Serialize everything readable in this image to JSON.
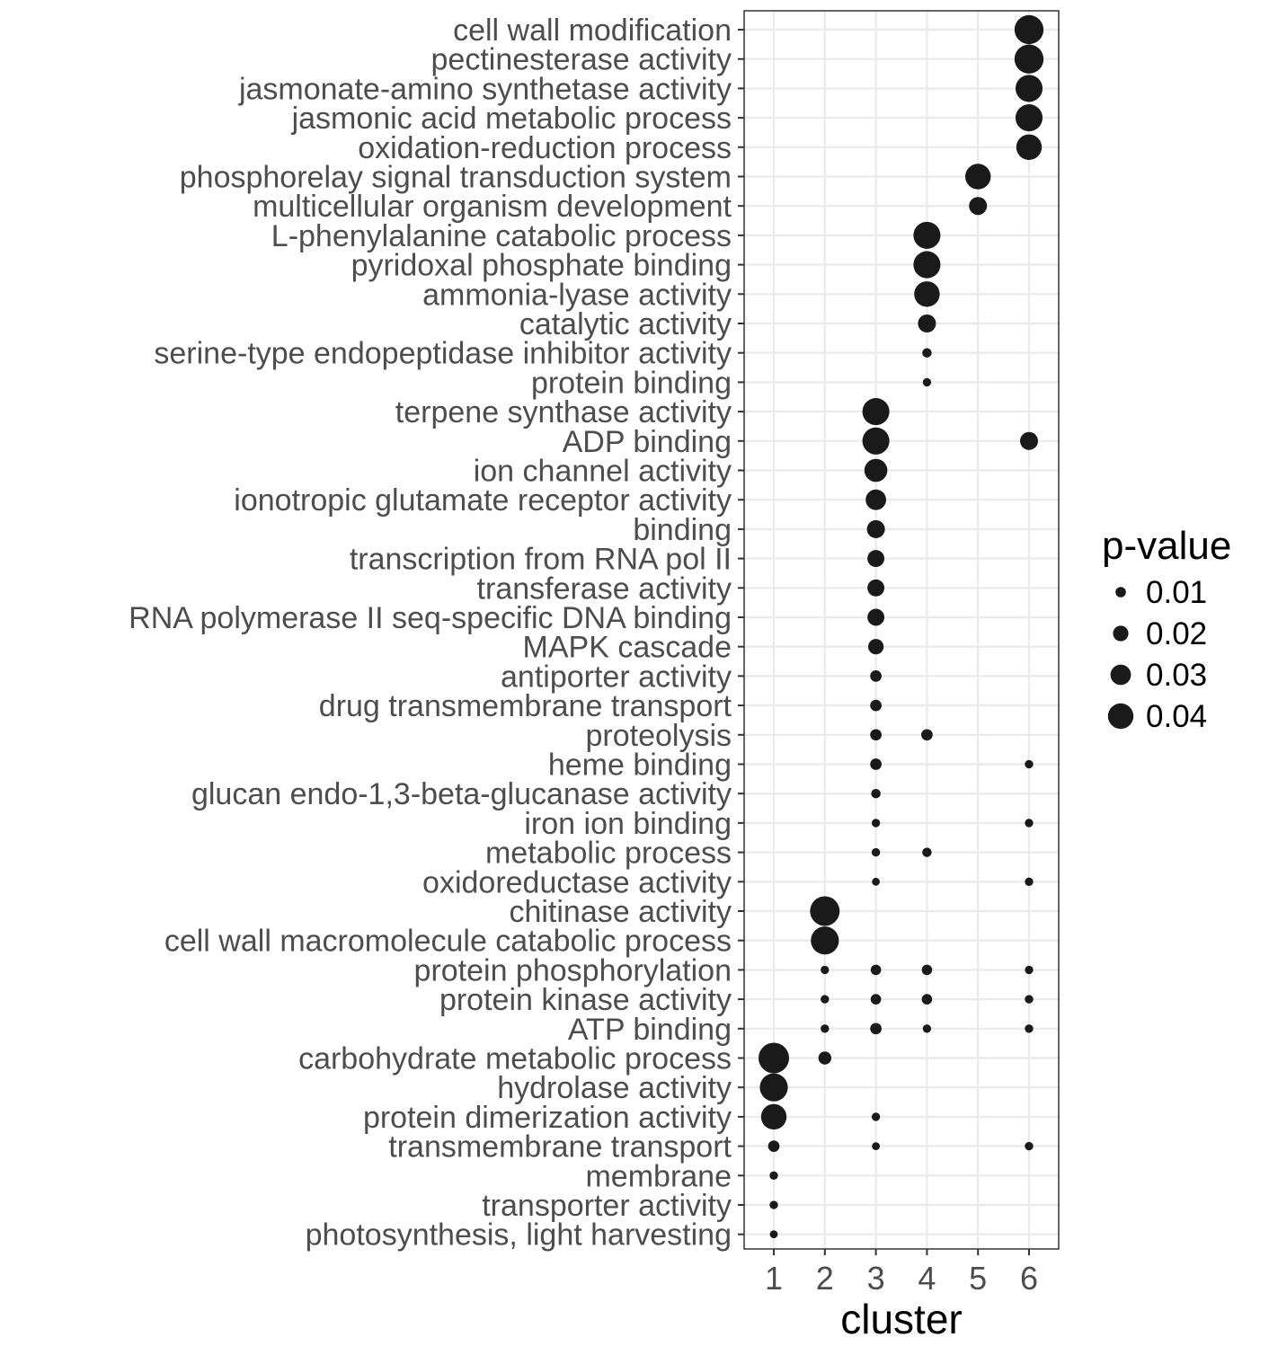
{
  "chart_data": {
    "type": "scatter",
    "xlabel": "cluster",
    "x_categories": [
      "1",
      "2",
      "3",
      "4",
      "5",
      "6"
    ],
    "y_categories": [
      "cell wall modification",
      "pectinesterase activity",
      "jasmonate-amino synthetase activity",
      "jasmonic acid metabolic process",
      "oxidation-reduction process",
      "phosphorelay signal transduction system",
      "multicellular organism development",
      "L-phenylalanine catabolic process",
      "pyridoxal phosphate binding",
      "ammonia-lyase activity",
      "catalytic activity",
      "serine-type endopeptidase inhibitor activity",
      "protein binding",
      "terpene synthase activity",
      "ADP binding",
      "ion channel activity",
      "ionotropic glutamate receptor activity",
      "binding",
      "transcription from RNA pol II",
      "transferase activity",
      "RNA polymerase II seq-specific DNA binding",
      "MAPK cascade",
      "antiporter activity",
      "drug transmembrane transport",
      "proteolysis",
      "heme binding",
      "glucan endo-1,3-beta-glucanase activity",
      "iron ion binding",
      "metabolic process",
      "oxidoreductase activity",
      "chitinase activity",
      "cell wall macromolecule catabolic process",
      "protein phosphorylation",
      "protein kinase activity",
      "ATP binding",
      "carbohydrate metabolic process",
      "hydrolase activity",
      "protein dimerization activity",
      "transmembrane transport",
      "membrane",
      "transporter activity",
      "photosynthesis, light harvesting"
    ],
    "size_legend": {
      "title": "p-value",
      "labels": [
        "0.01",
        "0.02",
        "0.03",
        "0.04"
      ],
      "values": [
        0.01,
        0.02,
        0.03,
        0.04
      ]
    },
    "points": [
      {
        "term": "cell wall modification",
        "cluster": 6,
        "p_value": 0.047
      },
      {
        "term": "pectinesterase activity",
        "cluster": 6,
        "p_value": 0.047
      },
      {
        "term": "jasmonate-amino synthetase activity",
        "cluster": 6,
        "p_value": 0.043
      },
      {
        "term": "jasmonic acid metabolic process",
        "cluster": 6,
        "p_value": 0.043
      },
      {
        "term": "oxidation-reduction process",
        "cluster": 6,
        "p_value": 0.04
      },
      {
        "term": "ADP binding",
        "cluster": 6,
        "p_value": 0.025
      },
      {
        "term": "heme binding",
        "cluster": 6,
        "p_value": 0.006
      },
      {
        "term": "iron ion binding",
        "cluster": 6,
        "p_value": 0.006
      },
      {
        "term": "oxidoreductase activity",
        "cluster": 6,
        "p_value": 0.006
      },
      {
        "term": "protein phosphorylation",
        "cluster": 6,
        "p_value": 0.006
      },
      {
        "term": "protein kinase activity",
        "cluster": 6,
        "p_value": 0.006
      },
      {
        "term": "ATP binding",
        "cluster": 6,
        "p_value": 0.006
      },
      {
        "term": "transmembrane transport",
        "cluster": 6,
        "p_value": 0.006
      },
      {
        "term": "phosphorelay signal transduction system",
        "cluster": 5,
        "p_value": 0.04
      },
      {
        "term": "multicellular organism development",
        "cluster": 5,
        "p_value": 0.025
      },
      {
        "term": "L-phenylalanine catabolic process",
        "cluster": 4,
        "p_value": 0.043
      },
      {
        "term": "pyridoxal phosphate binding",
        "cluster": 4,
        "p_value": 0.043
      },
      {
        "term": "ammonia-lyase activity",
        "cluster": 4,
        "p_value": 0.04
      },
      {
        "term": "catalytic activity",
        "cluster": 4,
        "p_value": 0.025
      },
      {
        "term": "serine-type endopeptidase inhibitor activity",
        "cluster": 4,
        "p_value": 0.008
      },
      {
        "term": "protein binding",
        "cluster": 4,
        "p_value": 0.006
      },
      {
        "term": "proteolysis",
        "cluster": 4,
        "p_value": 0.012
      },
      {
        "term": "metabolic process",
        "cluster": 4,
        "p_value": 0.008
      },
      {
        "term": "protein phosphorylation",
        "cluster": 4,
        "p_value": 0.01
      },
      {
        "term": "protein kinase activity",
        "cluster": 4,
        "p_value": 0.01
      },
      {
        "term": "ATP binding",
        "cluster": 4,
        "p_value": 0.006
      },
      {
        "term": "terpene synthase activity",
        "cluster": 3,
        "p_value": 0.043
      },
      {
        "term": "ADP binding",
        "cluster": 3,
        "p_value": 0.043
      },
      {
        "term": "ion channel activity",
        "cluster": 3,
        "p_value": 0.035
      },
      {
        "term": "ionotropic glutamate receptor activity",
        "cluster": 3,
        "p_value": 0.03
      },
      {
        "term": "binding",
        "cluster": 3,
        "p_value": 0.025
      },
      {
        "term": "transcription from RNA pol II",
        "cluster": 3,
        "p_value": 0.023
      },
      {
        "term": "transferase activity",
        "cluster": 3,
        "p_value": 0.023
      },
      {
        "term": "RNA polymerase II seq-specific DNA binding",
        "cluster": 3,
        "p_value": 0.023
      },
      {
        "term": "MAPK cascade",
        "cluster": 3,
        "p_value": 0.02
      },
      {
        "term": "antiporter activity",
        "cluster": 3,
        "p_value": 0.012
      },
      {
        "term": "drug transmembrane transport",
        "cluster": 3,
        "p_value": 0.012
      },
      {
        "term": "proteolysis",
        "cluster": 3,
        "p_value": 0.012
      },
      {
        "term": "heme binding",
        "cluster": 3,
        "p_value": 0.012
      },
      {
        "term": "glucan endo-1,3-beta-glucanase activity",
        "cluster": 3,
        "p_value": 0.008
      },
      {
        "term": "iron ion binding",
        "cluster": 3,
        "p_value": 0.006
      },
      {
        "term": "metabolic process",
        "cluster": 3,
        "p_value": 0.006
      },
      {
        "term": "oxidoreductase activity",
        "cluster": 3,
        "p_value": 0.005
      },
      {
        "term": "protein phosphorylation",
        "cluster": 3,
        "p_value": 0.01
      },
      {
        "term": "protein kinase activity",
        "cluster": 3,
        "p_value": 0.01
      },
      {
        "term": "ATP binding",
        "cluster": 3,
        "p_value": 0.012
      },
      {
        "term": "protein dimerization activity",
        "cluster": 3,
        "p_value": 0.006
      },
      {
        "term": "transmembrane transport",
        "cluster": 3,
        "p_value": 0.005
      },
      {
        "term": "chitinase activity",
        "cluster": 2,
        "p_value": 0.048
      },
      {
        "term": "cell wall macromolecule catabolic process",
        "cluster": 2,
        "p_value": 0.045
      },
      {
        "term": "protein phosphorylation",
        "cluster": 2,
        "p_value": 0.006
      },
      {
        "term": "protein kinase activity",
        "cluster": 2,
        "p_value": 0.006
      },
      {
        "term": "ATP binding",
        "cluster": 2,
        "p_value": 0.006
      },
      {
        "term": "carbohydrate metabolic process",
        "cluster": 2,
        "p_value": 0.015
      },
      {
        "term": "carbohydrate metabolic process",
        "cluster": 1,
        "p_value": 0.05
      },
      {
        "term": "hydrolase activity",
        "cluster": 1,
        "p_value": 0.045
      },
      {
        "term": "protein dimerization activity",
        "cluster": 1,
        "p_value": 0.04
      },
      {
        "term": "transmembrane transport",
        "cluster": 1,
        "p_value": 0.012
      },
      {
        "term": "membrane",
        "cluster": 1,
        "p_value": 0.006
      },
      {
        "term": "transporter activity",
        "cluster": 1,
        "p_value": 0.006
      },
      {
        "term": "photosynthesis, light harvesting",
        "cluster": 1,
        "p_value": 0.005
      }
    ],
    "grid": true,
    "legend_position": "right",
    "point_color": "#1a1a1a"
  }
}
